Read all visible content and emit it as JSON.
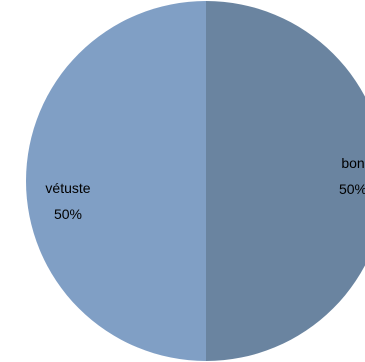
{
  "chart_data": {
    "type": "pie",
    "slices": [
      {
        "label": "bon",
        "value": 50,
        "percent_label": "50%",
        "color": "#6a84a0"
      },
      {
        "label": "vétuste",
        "value": 50,
        "percent_label": "50%",
        "color": "#809fc5"
      }
    ],
    "start": "top",
    "direction": "clockwise",
    "legend": "none"
  }
}
